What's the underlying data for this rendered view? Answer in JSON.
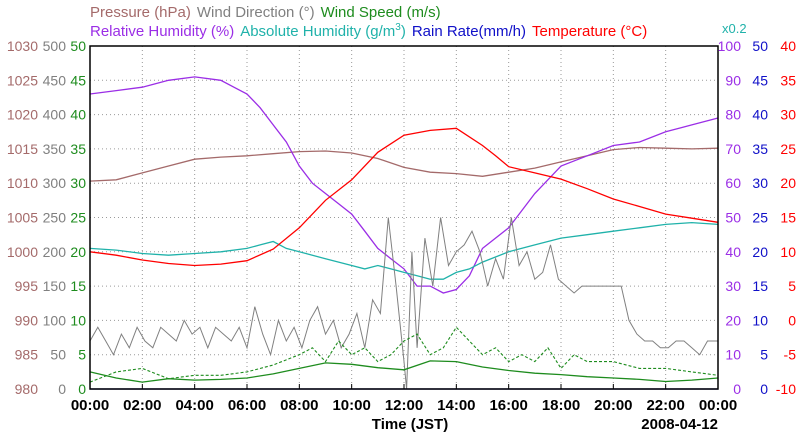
{
  "chart_data": {
    "type": "line",
    "date_label": "2008-04-12",
    "xlabel": "Time (JST)",
    "x_ticks": [
      "00:00",
      "02:00",
      "04:00",
      "06:00",
      "08:00",
      "10:00",
      "12:00",
      "14:00",
      "16:00",
      "18:00",
      "20:00",
      "22:00",
      "00:00"
    ],
    "xlim": [
      0,
      24
    ],
    "legend_rows": [
      [
        {
          "text": "Pressure (hPa)",
          "color": "#a46a6a"
        },
        {
          "text": "Wind Direction (°)",
          "color": "#808080"
        },
        {
          "text": "Wind Speed (m/s)",
          "color": "#1e8c1e"
        }
      ],
      [
        {
          "text": "Relative Humidity (%)",
          "color": "#9b2ee6"
        },
        {
          "text": "Absolute Humidity (g/m",
          "color": "#20b2aa",
          "sup": "3",
          "after": ")"
        },
        {
          "text": "Rain Rate(mm/h)",
          "color": "#1010c8"
        },
        {
          "text": "Temperature (°C)",
          "color": "#ff0000"
        }
      ]
    ],
    "scale_note": {
      "text": "x0.2",
      "color": "#20b2aa"
    },
    "axes": [
      {
        "name": "pressure",
        "side": "left",
        "color": "#a46a6a",
        "ticks": [
          "1030",
          "1025",
          "1020",
          "1015",
          "1010",
          "1005",
          "1000",
          "995",
          "990",
          "985",
          "980"
        ],
        "range": [
          980,
          1030
        ]
      },
      {
        "name": "wind-direction",
        "side": "left",
        "color": "#808080",
        "ticks": [
          "500",
          "450",
          "400",
          "350",
          "300",
          "250",
          "200",
          "150",
          "100",
          "50",
          "0"
        ],
        "range": [
          0,
          500
        ]
      },
      {
        "name": "wind-speed",
        "side": "left",
        "color": "#1e8c1e",
        "ticks": [
          "50",
          "45",
          "40",
          "35",
          "30",
          "25",
          "20",
          "15",
          "10",
          "5",
          "0"
        ],
        "range": [
          0,
          50
        ]
      },
      {
        "name": "relative-humidity",
        "side": "right",
        "color": "#9b2ee6",
        "ticks": [
          "100",
          "90",
          "80",
          "70",
          "60",
          "50",
          "40",
          "30",
          "20",
          "10",
          "0"
        ],
        "range": [
          0,
          100
        ]
      },
      {
        "name": "rain-rate",
        "side": "right",
        "color": "#1010c8",
        "ticks": [
          "50",
          "45",
          "40",
          "35",
          "30",
          "25",
          "20",
          "15",
          "10",
          "5",
          "0"
        ],
        "range": [
          0,
          50
        ]
      },
      {
        "name": "temperature",
        "side": "right",
        "color": "#ff0000",
        "ticks": [
          "40",
          "35",
          "30",
          "25",
          "20",
          "15",
          "10",
          "5",
          "0",
          "-5",
          "-10"
        ],
        "range": [
          -10,
          40
        ]
      }
    ],
    "series": [
      {
        "key": "pressure",
        "color": "#a46a6a",
        "axis": "pressure",
        "x": [
          0,
          1,
          2,
          3,
          4,
          5,
          6,
          7,
          8,
          9,
          10,
          11,
          12,
          13,
          14,
          15,
          16,
          17,
          18,
          19,
          20,
          21,
          22,
          23,
          24
        ],
        "y": [
          1010.3,
          1010.5,
          1011.5,
          1012.5,
          1013.5,
          1013.8,
          1014.0,
          1014.3,
          1014.6,
          1014.7,
          1014.4,
          1013.6,
          1012.3,
          1011.6,
          1011.4,
          1011.0,
          1011.6,
          1012.2,
          1013.1,
          1014.0,
          1014.9,
          1015.2,
          1015.1,
          1015.0,
          1015.1
        ]
      },
      {
        "key": "relative-humidity",
        "color": "#9b2ee6",
        "axis": "relative-humidity",
        "x": [
          0,
          1,
          2,
          2.5,
          3,
          4,
          5,
          5.5,
          6,
          6.5,
          7,
          7.5,
          8,
          8.5,
          9,
          9.5,
          10,
          10.5,
          11,
          11.5,
          12,
          12.5,
          13,
          13.5,
          14,
          14.5,
          15,
          16,
          16.5,
          17,
          17.5,
          18,
          19,
          20,
          21,
          22,
          23,
          24
        ],
        "y": [
          86,
          87,
          88,
          89,
          90,
          91,
          90,
          88,
          86,
          82,
          77,
          72,
          65,
          60,
          57,
          54,
          51,
          46,
          41,
          38,
          35,
          30,
          30,
          28,
          29,
          33,
          41,
          47,
          52,
          57,
          61,
          65,
          68,
          71,
          72,
          75,
          77,
          79
        ]
      },
      {
        "key": "absolute-humidity",
        "color": "#20b2aa",
        "axis": "relative-humidity",
        "x": [
          0,
          1,
          2,
          3,
          4,
          5,
          6,
          6.5,
          7,
          7.5,
          8,
          8.5,
          9,
          9.5,
          10,
          10.5,
          11,
          11.5,
          12,
          12.5,
          13,
          13.5,
          14,
          14.5,
          15,
          16,
          17,
          18,
          19,
          20,
          21,
          22,
          23,
          24
        ],
        "y": [
          41,
          40.5,
          39.5,
          39,
          39.5,
          40,
          41,
          42,
          43,
          41,
          40,
          39,
          38,
          37,
          36,
          35,
          36,
          35,
          34,
          33,
          32,
          32,
          34,
          35,
          37,
          40,
          42,
          44,
          45,
          46,
          47,
          48,
          48.5,
          48
        ]
      },
      {
        "key": "temperature",
        "color": "#ff0000",
        "axis": "temperature",
        "x": [
          0,
          1,
          2,
          3,
          4,
          5,
          6,
          7,
          8,
          8.5,
          9,
          10,
          11,
          12,
          13,
          14,
          15,
          15.5,
          16,
          17,
          18,
          19,
          20,
          21,
          22,
          23,
          24
        ],
        "y": [
          10,
          9.5,
          8.8,
          8.3,
          8,
          8.2,
          8.7,
          10.4,
          13.5,
          15.5,
          17.5,
          20.5,
          24.5,
          27,
          27.7,
          28,
          25.5,
          24,
          22.4,
          21.5,
          20.6,
          19.2,
          17.7,
          16.6,
          15.5,
          14.9,
          14.3
        ]
      },
      {
        "key": "wind-direction",
        "color": "#808080",
        "axis": "wind-direction",
        "x": [
          0,
          0.3,
          0.6,
          0.9,
          1.2,
          1.5,
          1.8,
          2.1,
          2.4,
          2.7,
          3,
          3.3,
          3.6,
          3.9,
          4.2,
          4.5,
          4.8,
          5.1,
          5.4,
          5.7,
          6,
          6.3,
          6.6,
          6.9,
          7.2,
          7.5,
          7.8,
          8.1,
          8.4,
          8.7,
          9,
          9.3,
          9.6,
          9.9,
          10.2,
          10.5,
          10.8,
          11.1,
          11.4,
          11.7,
          12,
          12.1,
          12.3,
          12.5,
          12.8,
          13.1,
          13.4,
          13.7,
          14,
          14.3,
          14.6,
          14.9,
          15.2,
          15.5,
          15.8,
          16.1,
          16.4,
          16.7,
          17,
          17.3,
          17.6,
          17.9,
          18.2,
          18.5,
          18.8,
          19.1,
          19.4,
          19.7,
          20,
          20.3,
          20.6,
          20.9,
          21.2,
          21.5,
          21.8,
          22.1,
          22.4,
          22.7,
          23,
          23.3,
          23.6,
          23.9,
          24
        ],
        "y": [
          70,
          90,
          70,
          50,
          80,
          60,
          90,
          70,
          60,
          90,
          80,
          70,
          100,
          80,
          90,
          60,
          90,
          80,
          70,
          90,
          60,
          120,
          80,
          50,
          100,
          70,
          90,
          60,
          100,
          120,
          80,
          100,
          60,
          80,
          110,
          60,
          130,
          110,
          250,
          150,
          40,
          0,
          200,
          60,
          220,
          150,
          250,
          180,
          200,
          210,
          230,
          200,
          150,
          190,
          160,
          250,
          180,
          200,
          160,
          170,
          210,
          160,
          150,
          140,
          150,
          150,
          150,
          150,
          150,
          150,
          100,
          80,
          70,
          70,
          60,
          60,
          70,
          70,
          60,
          50,
          70,
          70,
          70
        ]
      },
      {
        "key": "wind-speed",
        "color": "#1e8c1e",
        "axis": "wind-speed",
        "x": [
          0,
          1,
          2,
          3,
          4,
          5,
          6,
          7,
          8,
          9,
          10,
          11,
          12,
          13,
          14,
          15,
          16,
          17,
          18,
          19,
          20,
          21,
          22,
          23,
          24
        ],
        "y": [
          2.5,
          1.6,
          1,
          1.5,
          1.3,
          1.4,
          1.6,
          2.2,
          3,
          3.8,
          3.6,
          3.1,
          2.8,
          4.1,
          4,
          3.2,
          2.7,
          2.3,
          2.1,
          1.8,
          1.6,
          1.4,
          1.1,
          1.3,
          1.6
        ],
        "gust_x": [
          0,
          1,
          2,
          3,
          4,
          5,
          6,
          7,
          8,
          8.5,
          9,
          9.5,
          10,
          10.5,
          11,
          11.5,
          12,
          12.5,
          13,
          13.5,
          14,
          14.5,
          15,
          15.5,
          16,
          16.5,
          17,
          17.5,
          18,
          18.5,
          19,
          20,
          21,
          22,
          23,
          24
        ],
        "gust_y": [
          1,
          2.5,
          3,
          1.5,
          2,
          2,
          2.5,
          3.5,
          5,
          6,
          4,
          7,
          5,
          6,
          4,
          5,
          7,
          8,
          5,
          6,
          9,
          7,
          5,
          6,
          4,
          5,
          4,
          6,
          3,
          5,
          4,
          4,
          3,
          3,
          2.5,
          2
        ]
      },
      {
        "key": "rain-rate",
        "color": "#1010c8",
        "axis": "rain-rate",
        "x": [
          0,
          24
        ],
        "y": [
          0,
          0
        ]
      }
    ]
  }
}
